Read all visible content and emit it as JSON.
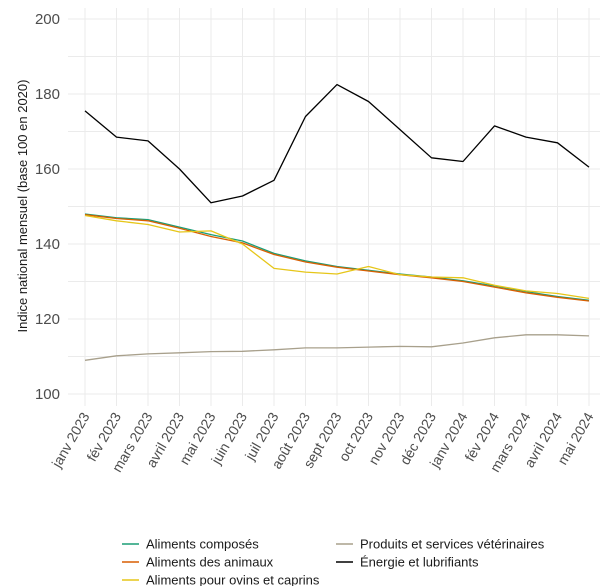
{
  "chart_data": {
    "type": "line",
    "xlabel": "",
    "ylabel": "Indice national mensuel (base 100 en 2020)",
    "ylim": [
      98,
      202
    ],
    "yticks": [
      100,
      120,
      140,
      160,
      180,
      200
    ],
    "grid": true,
    "legend_position": "bottom",
    "categories": [
      "janv 2023",
      "fév 2023",
      "mars 2023",
      "avril 2023",
      "mai 2023",
      "juin 2023",
      "juil 2023",
      "août 2023",
      "sept 2023",
      "oct 2023",
      "nov 2023",
      "déc 2023",
      "janv 2024",
      "fév 2024",
      "mars 2024",
      "avril 2024",
      "mai 2024"
    ],
    "series": [
      {
        "name": "Aliments composés",
        "color": "#1b9e77",
        "values": [
          148.0,
          147.0,
          146.5,
          144.5,
          142.5,
          140.8,
          137.5,
          135.5,
          134.0,
          133.0,
          132.0,
          131.2,
          130.2,
          128.8,
          127.3,
          126.0,
          125.0
        ]
      },
      {
        "name": "Aliments des animaux",
        "color": "#d95f02",
        "values": [
          147.8,
          146.8,
          146.2,
          144.2,
          142.0,
          140.3,
          137.2,
          135.2,
          133.8,
          132.8,
          131.8,
          131.0,
          130.0,
          128.5,
          127.0,
          125.8,
          124.8
        ]
      },
      {
        "name": "Aliments pour ovins et caprins",
        "color": "#e6c619",
        "values": [
          147.6,
          146.2,
          145.2,
          143.2,
          143.5,
          140.0,
          133.5,
          132.5,
          132.0,
          134.0,
          131.8,
          131.2,
          131.0,
          129.0,
          127.5,
          126.8,
          125.5
        ]
      },
      {
        "name": "Produits et services vétérinaires",
        "color": "#a8a08c",
        "values": [
          109.0,
          110.2,
          110.7,
          111.0,
          111.3,
          111.4,
          111.8,
          112.3,
          112.3,
          112.5,
          112.7,
          112.6,
          113.6,
          115.0,
          115.8,
          115.8,
          115.5
        ]
      },
      {
        "name": "Énergie et lubrifiants",
        "color": "#000000",
        "values": [
          175.5,
          168.5,
          167.5,
          160.0,
          151.0,
          152.8,
          157.0,
          174.0,
          182.5,
          178.0,
          170.5,
          163.0,
          162.0,
          171.5,
          168.5,
          167.0,
          160.5
        ]
      }
    ]
  }
}
